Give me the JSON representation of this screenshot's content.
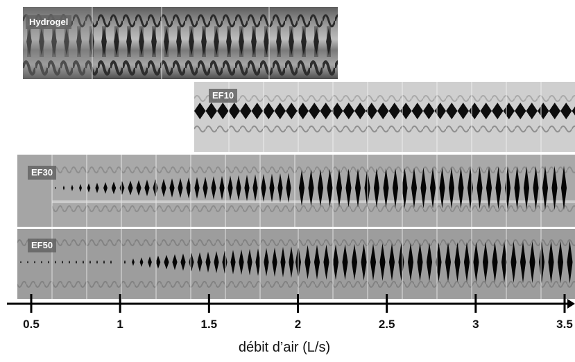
{
  "panels": [
    {
      "label": "Hydrogel",
      "x_start": 0.5,
      "x_end": 2.25
    },
    {
      "label": "EF10",
      "x_start": 1.4,
      "x_end": 3.55
    },
    {
      "label": "EF30",
      "x_start": 0.42,
      "x_end": 3.55
    },
    {
      "label": "EF50",
      "x_start": 0.42,
      "x_end": 3.55
    }
  ],
  "axis": {
    "title": "débit d’air (L/s)",
    "min": 0.42,
    "max": 3.6,
    "ticks": [
      "0.5",
      "1",
      "1.5",
      "2",
      "2.5",
      "3",
      "3.5"
    ]
  }
}
